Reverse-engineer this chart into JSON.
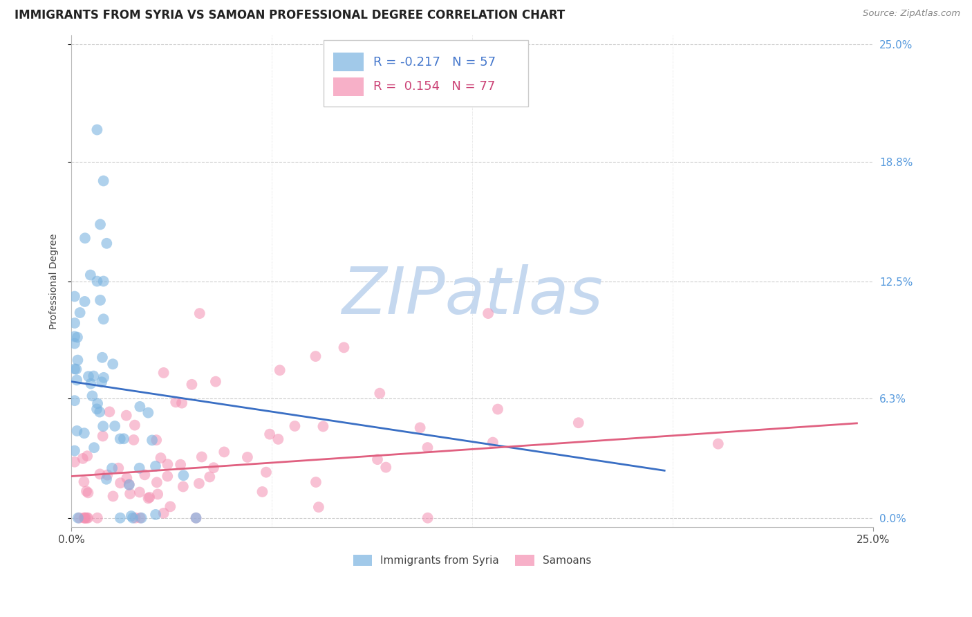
{
  "title": "IMMIGRANTS FROM SYRIA VS SAMOAN PROFESSIONAL DEGREE CORRELATION CHART",
  "source": "Source: ZipAtlas.com",
  "ylabel": "Professional Degree",
  "xlim": [
    0.0,
    0.25
  ],
  "ylim": [
    -0.005,
    0.255
  ],
  "ytick_vals": [
    0.0,
    0.063,
    0.125,
    0.188,
    0.25
  ],
  "ytick_labels_right": [
    "0.0%",
    "6.3%",
    "12.5%",
    "18.8%",
    "25.0%"
  ],
  "xtick_vals": [
    0.0,
    0.25
  ],
  "xtick_labels": [
    "0.0%",
    "25.0%"
  ],
  "grid_color": "#cccccc",
  "bg_color": "#ffffff",
  "blue_color": "#7ab3e0",
  "pink_color": "#f48fb1",
  "blue_line_color": "#3a6fc4",
  "pink_line_color": "#e06080",
  "blue_label": "Immigrants from Syria",
  "pink_label": "Samoans",
  "blue_R": "-0.217",
  "blue_N": "57",
  "pink_R": "0.154",
  "pink_N": "77",
  "watermark": "ZIPatlas",
  "watermark_color": "#c5d8ef",
  "title_fontsize": 12,
  "tick_fontsize": 11,
  "legend_fontsize": 13,
  "axis_label_fontsize": 10,
  "blue_line_x0": 0.0,
  "blue_line_x1": 0.185,
  "blue_line_y0": 0.072,
  "blue_line_y1": 0.025,
  "pink_line_x0": 0.0,
  "pink_line_x1": 0.245,
  "pink_line_y0": 0.022,
  "pink_line_y1": 0.05
}
